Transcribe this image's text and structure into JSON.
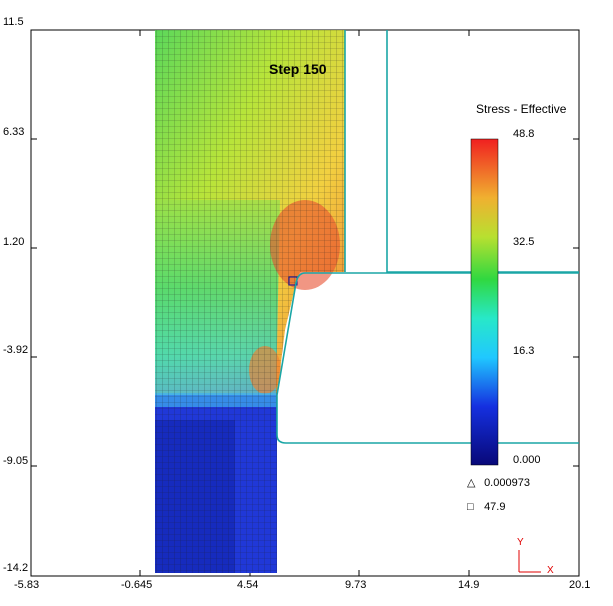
{
  "plot": {
    "step_text": "Step  150",
    "y_ticks": [
      "11.5",
      "6.33",
      "1.20",
      "-3.92",
      "-9.05",
      "-14.2"
    ],
    "x_ticks": [
      "-5.83",
      "-0.645",
      "4.54",
      "9.73",
      "14.9",
      "20.1"
    ]
  },
  "legend": {
    "title": "Stress - Effective",
    "labels": [
      "48.8",
      "32.5",
      "16.3",
      "0.000"
    ],
    "min_symbol": "△",
    "min_value": "0.000973",
    "max_symbol": "□",
    "max_value": "47.9"
  },
  "axis_triad": {
    "y": "Y",
    "x": "X"
  },
  "colors": {
    "die_outline": "#1aa6a6",
    "frame": "#000000",
    "axis_triad": "#e00000",
    "colorbar_top": "#e8281e",
    "colorbar_bottom": "#0a0a8c"
  }
}
